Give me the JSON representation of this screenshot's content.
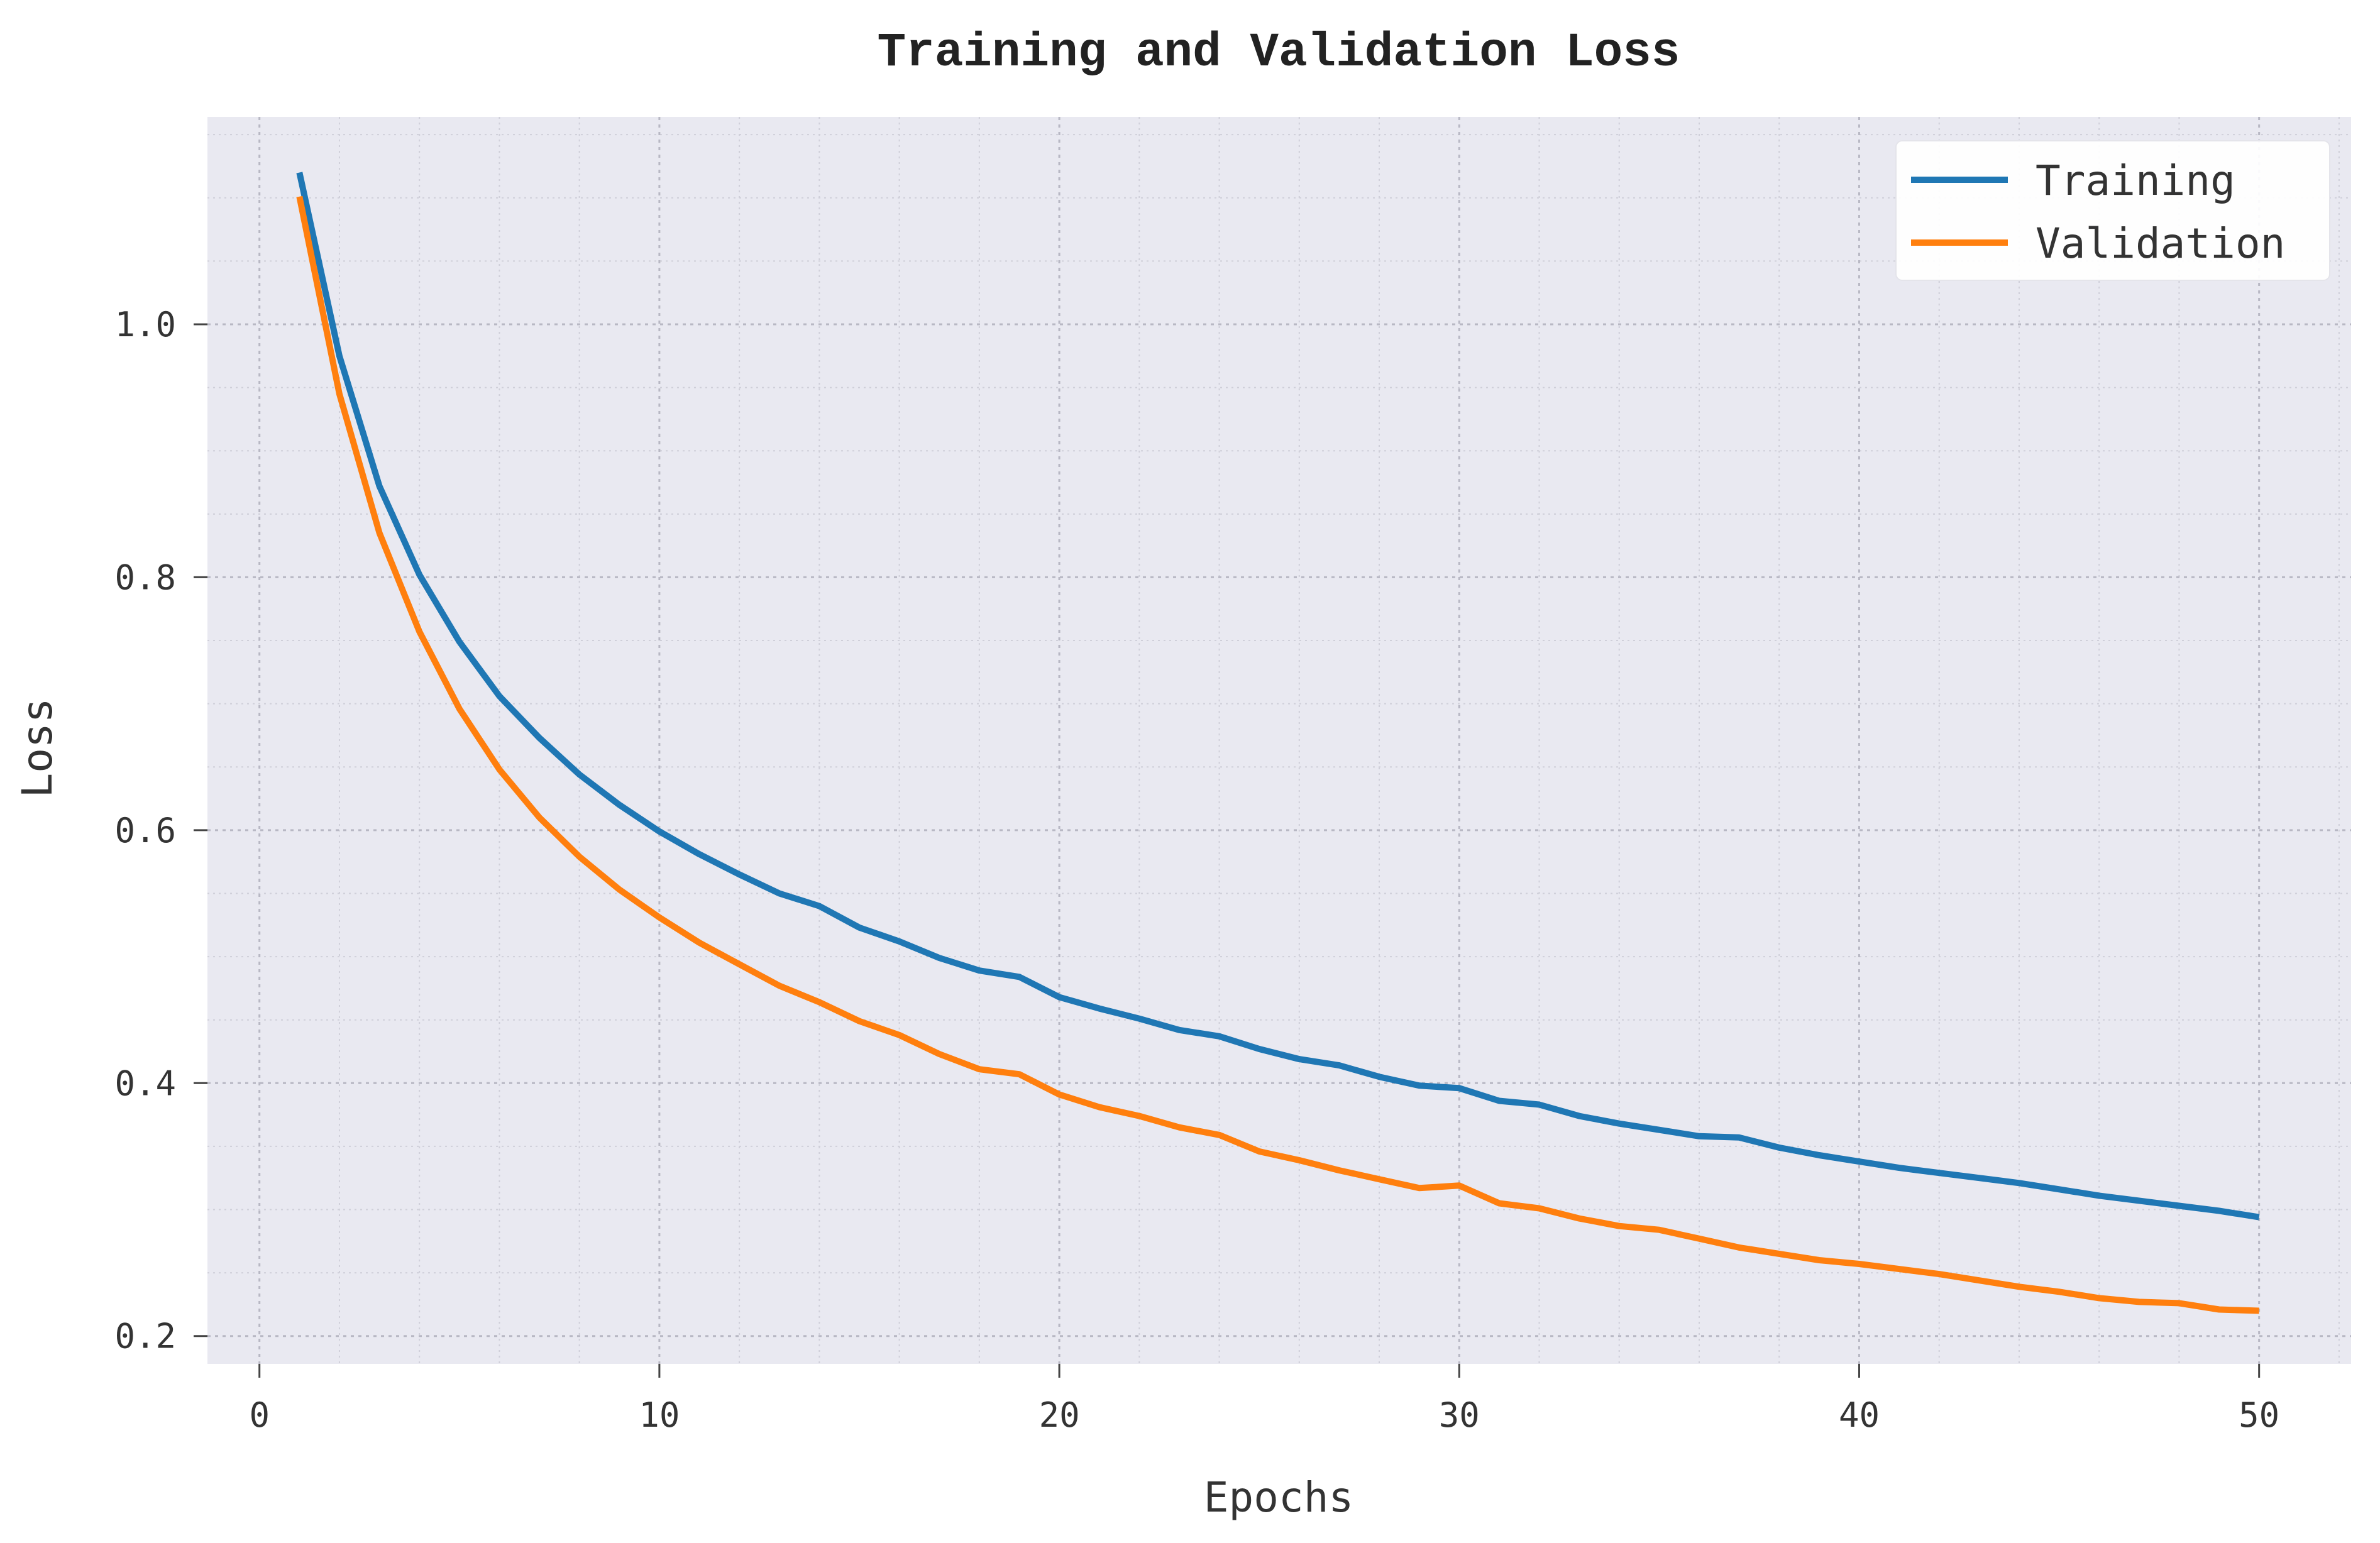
{
  "chart_data": {
    "type": "line",
    "title": "Training and Validation Loss",
    "xlabel": "Epochs",
    "ylabel": "Loss",
    "xlim": [
      -1.3,
      52.3
    ],
    "ylim": [
      0.178,
      1.164
    ],
    "x_ticks": [
      0,
      10,
      20,
      30,
      40,
      50
    ],
    "x_tick_labels": [
      "0",
      "10",
      "20",
      "30",
      "40",
      "50"
    ],
    "y_ticks": [
      0.2,
      0.4,
      0.6,
      0.8,
      1.0
    ],
    "y_tick_labels": [
      "0.2",
      "0.4",
      "0.6",
      "0.8",
      "1.0"
    ],
    "grid": true,
    "minor_grid": true,
    "legend_position": "top-right",
    "colors": {
      "plot_background": "#e9e9f1",
      "major_grid": "#b8b8c4",
      "minor_grid": "#cfcfd9",
      "text": "#333333"
    },
    "x": [
      1,
      2,
      3,
      4,
      5,
      6,
      7,
      8,
      9,
      10,
      11,
      12,
      13,
      14,
      15,
      16,
      17,
      18,
      19,
      20,
      21,
      22,
      23,
      24,
      25,
      26,
      27,
      28,
      29,
      30,
      31,
      32,
      33,
      34,
      35,
      36,
      37,
      38,
      39,
      40,
      41,
      42,
      43,
      44,
      45,
      46,
      47,
      48,
      49,
      50
    ],
    "series": [
      {
        "name": "Training",
        "color": "#1f77b4",
        "values": [
          1.12,
          0.975,
          0.872,
          0.802,
          0.749,
          0.706,
          0.673,
          0.644,
          0.62,
          0.599,
          0.581,
          0.565,
          0.55,
          0.54,
          0.523,
          0.512,
          0.499,
          0.489,
          0.484,
          0.468,
          0.459,
          0.451,
          0.442,
          0.437,
          0.427,
          0.419,
          0.414,
          0.405,
          0.398,
          0.396,
          0.386,
          0.383,
          0.374,
          0.368,
          0.363,
          0.358,
          0.357,
          0.349,
          0.343,
          0.338,
          0.333,
          0.329,
          0.325,
          0.321,
          0.316,
          0.311,
          0.307,
          0.303,
          0.299,
          0.294
        ]
      },
      {
        "name": "Validation",
        "color": "#ff7f0e",
        "values": [
          1.101,
          0.945,
          0.835,
          0.757,
          0.696,
          0.648,
          0.61,
          0.579,
          0.553,
          0.531,
          0.511,
          0.494,
          0.477,
          0.464,
          0.449,
          0.438,
          0.423,
          0.411,
          0.407,
          0.391,
          0.381,
          0.374,
          0.365,
          0.359,
          0.346,
          0.339,
          0.331,
          0.324,
          0.317,
          0.319,
          0.305,
          0.301,
          0.293,
          0.287,
          0.284,
          0.277,
          0.27,
          0.265,
          0.26,
          0.257,
          0.253,
          0.249,
          0.244,
          0.239,
          0.235,
          0.23,
          0.227,
          0.226,
          0.221,
          0.22
        ]
      }
    ]
  }
}
